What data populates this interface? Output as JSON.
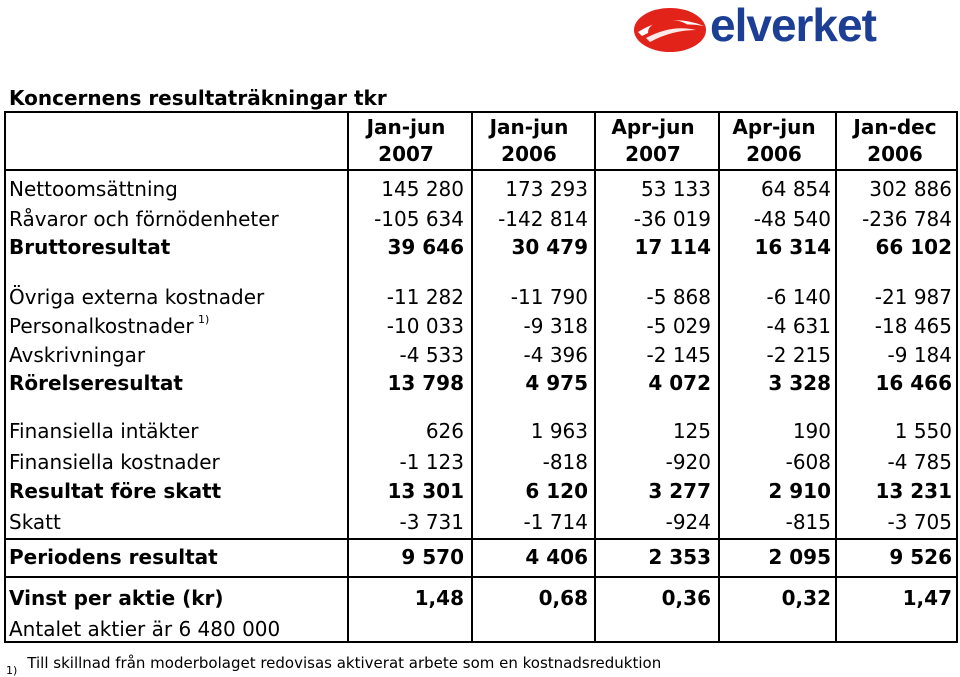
{
  "logo": {
    "text": "elverket"
  },
  "title": "Koncernens resultaträkningar tkr",
  "columns": [
    {
      "period": "Jan-jun",
      "year": "2007"
    },
    {
      "period": "Jan-jun",
      "year": "2006"
    },
    {
      "period": "Apr-jun",
      "year": "2007"
    },
    {
      "period": "Apr-jun",
      "year": "2006"
    },
    {
      "period": "Jan-dec",
      "year": "2006"
    }
  ],
  "rows": [
    {
      "label": "Nettoomsättning",
      "bold": false,
      "values": [
        "145 280",
        "173 293",
        "53 133",
        "64 854",
        "302 886"
      ]
    },
    {
      "label": "Råvaror och förnödenheter",
      "bold": false,
      "values": [
        "-105 634",
        "-142 814",
        "-36 019",
        "-48 540",
        "-236 784"
      ]
    },
    {
      "label": "Bruttoresultat",
      "bold": true,
      "values": [
        "39 646",
        "30 479",
        "17 114",
        "16 314",
        "66 102"
      ]
    },
    {
      "label": "Övriga externa kostnader",
      "bold": false,
      "values": [
        "-11 282",
        "-11 790",
        "-5 868",
        "-6 140",
        "-21 987"
      ]
    },
    {
      "label": "Personalkostnader",
      "note": "1)",
      "bold": false,
      "values": [
        "-10 033",
        "-9 318",
        "-5 029",
        "-4 631",
        "-18 465"
      ]
    },
    {
      "label": "Avskrivningar",
      "bold": false,
      "values": [
        "-4 533",
        "-4 396",
        "-2 145",
        "-2 215",
        "-9 184"
      ]
    },
    {
      "label": "Rörelseresultat",
      "bold": true,
      "values": [
        "13 798",
        "4 975",
        "4 072",
        "3 328",
        "16 466"
      ]
    },
    {
      "label": "Finansiella intäkter",
      "bold": false,
      "values": [
        "626",
        "1 963",
        "125",
        "190",
        "1 550"
      ]
    },
    {
      "label": "Finansiella kostnader",
      "bold": false,
      "values": [
        "-1 123",
        "-818",
        "-920",
        "-608",
        "-4 785"
      ]
    },
    {
      "label": "Resultat före skatt",
      "bold": true,
      "values": [
        "13 301",
        "6 120",
        "3 277",
        "2 910",
        "13 231"
      ]
    },
    {
      "label": "Skatt",
      "bold": false,
      "values": [
        "-3 731",
        "-1 714",
        "-924",
        "-815",
        "-3 705"
      ]
    },
    {
      "label": "Periodens resultat",
      "bold": true,
      "values": [
        "9 570",
        "4 406",
        "2 353",
        "2 095",
        "9 526"
      ]
    },
    {
      "label": "Vinst per aktie (kr)",
      "bold": true,
      "values": [
        "1,48",
        "0,68",
        "0,36",
        "0,32",
        "1,47"
      ]
    }
  ],
  "shares_note": "Antalet aktier är 6 480 000",
  "footnote": {
    "marker": "1)",
    "text": "Till skillnad från moderbolaget redovisas aktiverat arbete som en kostnadsreduktion"
  }
}
